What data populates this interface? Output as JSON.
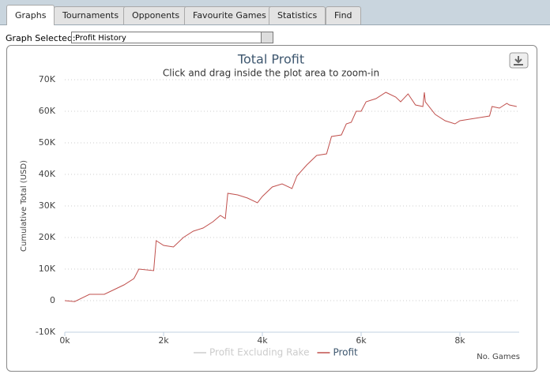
{
  "tabs": [
    "Graphs",
    "Tournaments",
    "Opponents",
    "Favourite Games",
    "Statistics",
    "Find"
  ],
  "selector": {
    "label": "Graph Selected:",
    "value": "Profit History"
  },
  "chart_data": {
    "type": "line",
    "title": "Total Profit",
    "subtitle": "Click and drag inside the plot area to zoom-in",
    "y_label": "Cumulative Total (USD)",
    "x_label": "No. Games",
    "xlim": [
      0,
      9200
    ],
    "ylim": [
      -10000,
      70000
    ],
    "xticks": [
      {
        "value": 0,
        "label": "0k"
      },
      {
        "value": 2000,
        "label": "2k"
      },
      {
        "value": 4000,
        "label": "4k"
      },
      {
        "value": 6000,
        "label": "6k"
      },
      {
        "value": 8000,
        "label": "8k"
      }
    ],
    "yticks": [
      {
        "value": -10000,
        "label": "-10K"
      },
      {
        "value": 0,
        "label": "0"
      },
      {
        "value": 10000,
        "label": "10K"
      },
      {
        "value": 20000,
        "label": "20K"
      },
      {
        "value": 30000,
        "label": "30K"
      },
      {
        "value": 40000,
        "label": "40K"
      },
      {
        "value": 50000,
        "label": "50K"
      },
      {
        "value": 60000,
        "label": "60K"
      },
      {
        "value": 70000,
        "label": "70K"
      }
    ],
    "grid": true,
    "hidden_series": [
      {
        "name": "Profit Excluding Rake",
        "color": "#cccccc"
      }
    ],
    "x": [
      0,
      200,
      500,
      800,
      1000,
      1200,
      1400,
      1500,
      1800,
      1850,
      2000,
      2200,
      2400,
      2600,
      2800,
      3000,
      3150,
      3250,
      3300,
      3500,
      3700,
      3900,
      4000,
      4200,
      4400,
      4600,
      4700,
      4900,
      5100,
      5300,
      5400,
      5600,
      5700,
      5800,
      5900,
      6000,
      6100,
      6300,
      6500,
      6700,
      6800,
      6950,
      7100,
      7250,
      7280,
      7300,
      7500,
      7700,
      7900,
      8000,
      8200,
      8400,
      8600,
      8650,
      8800,
      8950,
      9000,
      9150
    ],
    "series": [
      {
        "name": "Profit",
        "color": "#c0504d",
        "values": [
          0,
          -300,
          2000,
          2000,
          3500,
          5000,
          7000,
          10000,
          9500,
          19000,
          17500,
          17000,
          20000,
          22000,
          23000,
          25000,
          27000,
          26000,
          34000,
          33500,
          32500,
          31000,
          33000,
          36000,
          37000,
          35500,
          39500,
          43000,
          46000,
          46500,
          52000,
          52500,
          56000,
          56500,
          60000,
          60000,
          63000,
          64000,
          66000,
          64500,
          63000,
          65500,
          62000,
          61500,
          66000,
          63000,
          59000,
          57000,
          56000,
          57000,
          57500,
          58000,
          58500,
          61500,
          61000,
          62500,
          62000,
          61500
        ]
      }
    ]
  }
}
